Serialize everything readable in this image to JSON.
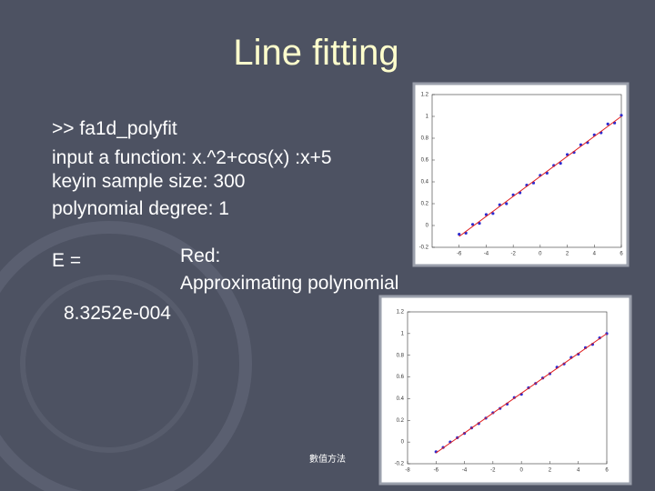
{
  "slide": {
    "title": "Line fitting",
    "lines": [
      ">> fa1d_polyfit",
      "input a function: x.^2+cos(x) :x+5",
      "keyin sample size: 300",
      "polynomial degree: 1"
    ],
    "e_label": "E =",
    "e_value": "8.3252e-004",
    "note": [
      "Red:",
      "Approximating polynomial"
    ],
    "footer": "數值方法"
  },
  "chart_data": [
    {
      "type": "scatter",
      "xlim": [
        -8,
        6
      ],
      "ylim": [
        -0.2,
        1.2
      ],
      "xticks": [
        -6,
        -4,
        -2,
        0,
        2,
        4,
        6
      ],
      "yticks": [
        -0.2,
        0,
        0.2,
        0.4,
        0.6,
        0.8,
        1,
        1.2
      ],
      "series": [
        {
          "color": "#2b2bd0",
          "x": [
            -6,
            -5.5,
            -5,
            -4.5,
            -4,
            -3.5,
            -3,
            -2.5,
            -2,
            -1.5,
            -1,
            -0.5,
            0,
            0.5,
            1,
            1.5,
            2,
            2.5,
            3,
            3.5,
            4,
            4.5,
            5,
            5.5,
            6
          ],
          "values": [
            -0.08,
            -0.07,
            0.01,
            0.02,
            0.1,
            0.11,
            0.19,
            0.2,
            0.28,
            0.3,
            0.37,
            0.39,
            0.46,
            0.48,
            0.55,
            0.57,
            0.65,
            0.67,
            0.74,
            0.76,
            0.83,
            0.85,
            0.93,
            0.94,
            1.01
          ]
        },
        {
          "color": "#e02020",
          "x": [
            -6,
            6
          ],
          "values": [
            -0.1,
            1.0
          ]
        }
      ]
    },
    {
      "type": "scatter",
      "xlim": [
        -8,
        6
      ],
      "ylim": [
        -0.2,
        1.2
      ],
      "xticks": [
        -8,
        -6,
        -4,
        -2,
        0,
        2,
        4,
        6
      ],
      "yticks": [
        -0.2,
        0,
        0.2,
        0.4,
        0.6,
        0.8,
        1,
        1.2
      ],
      "series": [
        {
          "color": "#2b2bd0",
          "x": [
            -6,
            -5.5,
            -5,
            -4.5,
            -4,
            -3.5,
            -3,
            -2.5,
            -2,
            -1.5,
            -1,
            -0.5,
            0,
            0.5,
            1,
            1.5,
            2,
            2.5,
            3,
            3.5,
            4,
            4.5,
            5,
            5.5,
            6
          ],
          "values": [
            -0.09,
            -0.05,
            0.0,
            0.04,
            0.08,
            0.13,
            0.17,
            0.22,
            0.27,
            0.31,
            0.35,
            0.41,
            0.44,
            0.5,
            0.54,
            0.59,
            0.63,
            0.69,
            0.72,
            0.78,
            0.81,
            0.87,
            0.9,
            0.96,
            1.0
          ]
        },
        {
          "color": "#e02020",
          "x": [
            -6,
            6
          ],
          "values": [
            -0.1,
            1.0
          ]
        }
      ]
    }
  ]
}
